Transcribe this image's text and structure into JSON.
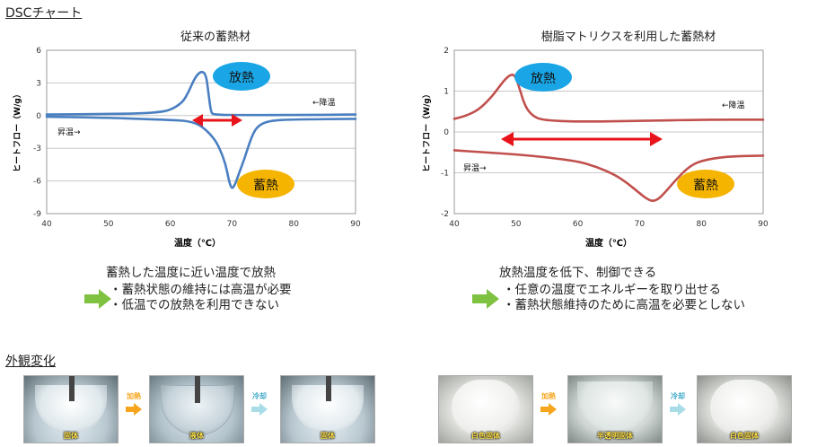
{
  "header": {
    "title": "DSCチャート"
  },
  "charts": {
    "left": {
      "title": "従来の蓄熱材",
      "ylabel": "ヒートフロー（W/g）",
      "xlabel": "温度（℃）",
      "xticks": [
        "40",
        "50",
        "60",
        "70",
        "80",
        "90"
      ],
      "yticks": [
        "6",
        "3",
        "0",
        "-3",
        "-6",
        "-9"
      ],
      "bubble_top": "放熱",
      "bubble_bottom": "蓄熱",
      "label_cool": "←降温",
      "label_heat": "昇温→"
    },
    "right": {
      "title": "樹脂マトリクスを利用した蓄熱材",
      "ylabel": "ヒートフロー（W/g）",
      "xlabel": "温度（℃）",
      "xticks": [
        "40",
        "50",
        "60",
        "70",
        "80",
        "90"
      ],
      "yticks": [
        "2",
        "1",
        "0",
        "-1",
        "-2"
      ],
      "bubble_top": "放熱",
      "bubble_bottom": "蓄熱",
      "label_cool": "←降温",
      "label_heat": "昇温→"
    }
  },
  "desc_left": {
    "main": "蓄熱した温度に近い温度で放熱",
    "b1": "・蓄熱状態の維持には高温が必要",
    "b2": "・低温での放熱を利用できない"
  },
  "desc_right": {
    "main": "放熱温度を低下、制御できる",
    "b1": "・任意の温度でエネルギーを取り出せる",
    "b2": "・蓄熱状態維持のために高温を必要としない"
  },
  "appearance": {
    "title": "外観変化",
    "left": {
      "p1": "固体",
      "step1": "加熱",
      "p2": "液体",
      "step2": "冷却",
      "p3": "固体"
    },
    "right": {
      "p1": "白色固体",
      "step1": "加熱",
      "p2": "半透明固体",
      "step2": "冷却",
      "p3": "白色固体"
    }
  },
  "colors": {
    "left_curve": "#4a7fc1",
    "right_curve": "#c0504d",
    "arrow_red": "#e8141b",
    "bubble_blue": "#1aa6e6",
    "bubble_orange": "#f5b400",
    "arrow_green": "#7fc241",
    "arrow_orange": "#f7a51c",
    "arrow_cyan": "#a8dde8"
  },
  "chart_data": [
    {
      "type": "line",
      "title": "従来の蓄熱材",
      "xlabel": "温度（℃）",
      "ylabel": "ヒートフロー（W/g）",
      "xlim": [
        40,
        90
      ],
      "ylim": [
        -9,
        6
      ],
      "grid": true,
      "series": [
        {
          "x": [
            40,
            50,
            55,
            58,
            60,
            62,
            63,
            64,
            65,
            65.8,
            66.2,
            66.6,
            67,
            70,
            80,
            90
          ],
          "y": [
            0.1,
            0.15,
            0.2,
            0.3,
            0.5,
            1.2,
            2.2,
            3.5,
            4.1,
            3.8,
            2.0,
            0.3,
            0.1,
            0.05,
            0.05,
            0.1
          ]
        },
        {
          "x": [
            40,
            50,
            55,
            60,
            63,
            65,
            67,
            68,
            69,
            69.5,
            70,
            70.6,
            71,
            72,
            73,
            74,
            76,
            80,
            90
          ],
          "y": [
            -0.1,
            -0.2,
            -0.3,
            -0.4,
            -0.5,
            -0.9,
            -2.0,
            -3.0,
            -4.5,
            -6.0,
            -6.8,
            -6.2,
            -5.5,
            -4.0,
            -2.2,
            -1.0,
            -0.45,
            -0.35,
            -0.3
          ]
        }
      ]
    },
    {
      "type": "line",
      "title": "樹脂マトリクスを利用した蓄熱材",
      "xlabel": "温度（℃）",
      "ylabel": "ヒートフロー（W/g）",
      "xlim": [
        40,
        90
      ],
      "ylim": [
        -2,
        2
      ],
      "grid": true,
      "series": [
        {
          "x": [
            40,
            42,
            44,
            46,
            47,
            48,
            49,
            49.8,
            50.5,
            51.5,
            53,
            55,
            60,
            70,
            80,
            90
          ],
          "y": [
            0.32,
            0.4,
            0.55,
            0.85,
            1.05,
            1.25,
            1.4,
            1.4,
            1.1,
            0.6,
            0.35,
            0.28,
            0.25,
            0.27,
            0.3,
            0.3
          ]
        },
        {
          "x": [
            40,
            45,
            50,
            55,
            60,
            63,
            66,
            68,
            70,
            71,
            72,
            73,
            74,
            76,
            78,
            80,
            84,
            90
          ],
          "y": [
            -0.45,
            -0.5,
            -0.55,
            -0.62,
            -0.72,
            -0.85,
            -1.05,
            -1.25,
            -1.5,
            -1.62,
            -1.7,
            -1.65,
            -1.5,
            -1.15,
            -0.85,
            -0.7,
            -0.6,
            -0.58
          ]
        }
      ]
    }
  ]
}
